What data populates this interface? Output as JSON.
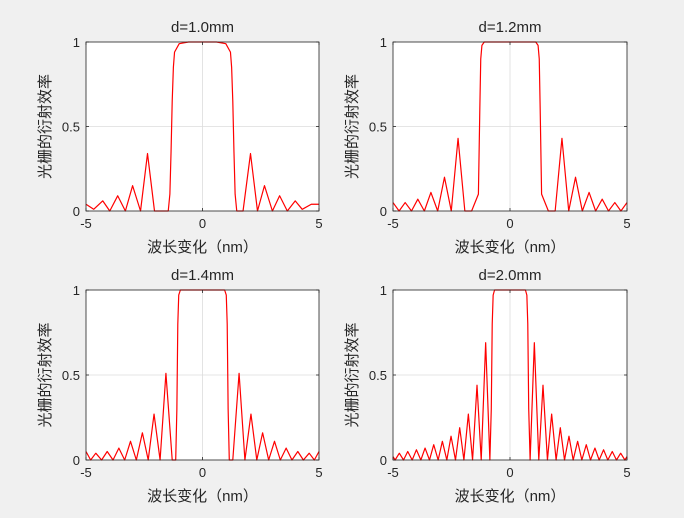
{
  "figure": {
    "background": "#f0f0f0",
    "axes_background": "#ffffff",
    "line_color": "#ff0000",
    "grid_color": "#dcdcdc",
    "axis_color": "#262626"
  },
  "chart_data": [
    {
      "type": "line",
      "title": "d=1.0mm",
      "xlabel": "波长变化（nm）",
      "ylabel": "光栅的衍射效率",
      "xlim": [
        -5,
        5
      ],
      "ylim": [
        0,
        1
      ],
      "xticks": [
        "-5",
        "0",
        "5"
      ],
      "yticks": [
        "0",
        "0.5",
        "1"
      ],
      "grid": true,
      "series": [
        {
          "color": "#ff0000",
          "x": [
            -5.0,
            -4.67,
            -4.28,
            -3.98,
            -3.64,
            -3.31,
            -3.0,
            -2.66,
            -2.36,
            -2.06,
            -1.74,
            -1.47,
            -1.4,
            -1.35,
            -1.3,
            -1.25,
            -1.2,
            -1.0,
            -0.6,
            0,
            0.6,
            1.0,
            1.2,
            1.25,
            1.3,
            1.35,
            1.4,
            1.47,
            1.74,
            2.06,
            2.36,
            2.66,
            3.0,
            3.31,
            3.64,
            3.98,
            4.28,
            4.67,
            5.0
          ],
          "y": [
            0.04,
            0.01,
            0.06,
            0.0,
            0.09,
            0.0,
            0.15,
            0.0,
            0.34,
            0.0,
            0.0,
            0.0,
            0.1,
            0.35,
            0.65,
            0.85,
            0.94,
            0.99,
            1.0,
            1.0,
            1.0,
            0.99,
            0.94,
            0.85,
            0.65,
            0.35,
            0.1,
            0.0,
            0.0,
            0.34,
            0.0,
            0.15,
            0.0,
            0.09,
            0.0,
            0.06,
            0.01,
            0.04,
            0.04
          ]
        }
      ]
    },
    {
      "type": "line",
      "title": "d=1.2mm",
      "xlabel": "波长变化（nm）",
      "ylabel": "光栅的衍射效率",
      "xlim": [
        -5,
        5
      ],
      "ylim": [
        0,
        1
      ],
      "xticks": [
        "-5",
        "0",
        "5"
      ],
      "yticks": [
        "0",
        "0.5",
        "1"
      ],
      "grid": true,
      "series": [
        {
          "color": "#ff0000",
          "x": [
            -5.0,
            -4.74,
            -4.48,
            -4.21,
            -3.94,
            -3.66,
            -3.38,
            -3.09,
            -2.8,
            -2.51,
            -2.22,
            -1.93,
            -1.64,
            -1.35,
            -1.29,
            -1.25,
            -1.2,
            -1.1,
            -0.8,
            0,
            0.8,
            1.1,
            1.2,
            1.25,
            1.29,
            1.35,
            1.64,
            1.93,
            2.22,
            2.51,
            2.8,
            3.09,
            3.38,
            3.66,
            3.94,
            4.21,
            4.48,
            4.74,
            5.0
          ],
          "y": [
            0.05,
            0.0,
            0.05,
            0.0,
            0.07,
            0.0,
            0.11,
            0.0,
            0.2,
            0.0,
            0.43,
            0.0,
            0.0,
            0.1,
            0.6,
            0.9,
            0.98,
            1.0,
            1.0,
            1.0,
            1.0,
            1.0,
            0.98,
            0.9,
            0.6,
            0.1,
            0.0,
            0.0,
            0.43,
            0.0,
            0.2,
            0.0,
            0.11,
            0.0,
            0.07,
            0.0,
            0.05,
            0.0,
            0.05
          ]
        }
      ]
    },
    {
      "type": "line",
      "title": "d=1.4mm",
      "xlabel": "波长变化（nm）",
      "ylabel": "光栅的衍射效率",
      "xlim": [
        -5,
        5
      ],
      "ylim": [
        0,
        1
      ],
      "xticks": [
        "-5",
        "0",
        "5"
      ],
      "yticks": [
        "0",
        "0.5",
        "1"
      ],
      "grid": true,
      "series": [
        {
          "color": "#ff0000",
          "x": [
            -5.0,
            -4.8,
            -4.58,
            -4.33,
            -4.09,
            -3.84,
            -3.59,
            -3.34,
            -3.09,
            -2.84,
            -2.58,
            -2.33,
            -2.08,
            -1.82,
            -1.57,
            -1.3,
            -1.15,
            -1.1,
            -1.06,
            -1.02,
            -0.95,
            -0.7,
            0,
            0.7,
            0.95,
            1.02,
            1.06,
            1.1,
            1.15,
            1.3,
            1.57,
            1.82,
            2.08,
            2.33,
            2.58,
            2.84,
            3.09,
            3.34,
            3.59,
            3.84,
            4.09,
            4.33,
            4.58,
            4.8,
            5.0
          ],
          "y": [
            0.05,
            0.0,
            0.04,
            0.0,
            0.05,
            0.0,
            0.07,
            0.0,
            0.11,
            0.0,
            0.16,
            0.0,
            0.27,
            0.0,
            0.51,
            0.0,
            0.0,
            0.3,
            0.8,
            0.97,
            1.0,
            1.0,
            1.0,
            1.0,
            1.0,
            0.97,
            0.8,
            0.3,
            0.0,
            0.0,
            0.51,
            0.0,
            0.27,
            0.0,
            0.16,
            0.0,
            0.11,
            0.0,
            0.07,
            0.0,
            0.05,
            0.0,
            0.04,
            0.0,
            0.05
          ]
        }
      ]
    },
    {
      "type": "line",
      "title": "d=2.0mm",
      "xlabel": "波长变化（nm）",
      "ylabel": "光栅的衍射效率",
      "xlim": [
        -5,
        5
      ],
      "ylim": [
        0,
        1
      ],
      "xticks": [
        "-5",
        "0",
        "5"
      ],
      "yticks": [
        "0",
        "0.5",
        "1"
      ],
      "grid": true,
      "series": [
        {
          "color": "#ff0000",
          "x": [
            -5.0,
            -4.91,
            -4.73,
            -4.55,
            -4.37,
            -4.18,
            -4.0,
            -3.81,
            -3.63,
            -3.44,
            -3.26,
            -3.07,
            -2.89,
            -2.7,
            -2.52,
            -2.33,
            -2.15,
            -1.97,
            -1.78,
            -1.6,
            -1.41,
            -1.23,
            -1.04,
            -0.86,
            -0.8,
            -0.76,
            -0.72,
            -0.66,
            0,
            0.66,
            0.72,
            0.76,
            0.8,
            0.86,
            1.04,
            1.23,
            1.41,
            1.6,
            1.78,
            1.97,
            2.15,
            2.33,
            2.52,
            2.7,
            2.89,
            3.07,
            3.26,
            3.44,
            3.63,
            3.81,
            4.0,
            4.18,
            4.37,
            4.55,
            4.73,
            4.91,
            5.0
          ],
          "y": [
            0.02,
            0.0,
            0.04,
            0.0,
            0.05,
            0.0,
            0.06,
            0.0,
            0.07,
            0.0,
            0.09,
            0.0,
            0.11,
            0.0,
            0.14,
            0.0,
            0.19,
            0.0,
            0.27,
            0.0,
            0.44,
            0.0,
            0.69,
            0.0,
            0.3,
            0.8,
            0.97,
            1.0,
            1.0,
            1.0,
            0.97,
            0.8,
            0.3,
            0.0,
            0.69,
            0.0,
            0.44,
            0.0,
            0.27,
            0.0,
            0.19,
            0.0,
            0.14,
            0.0,
            0.11,
            0.0,
            0.09,
            0.0,
            0.07,
            0.0,
            0.06,
            0.0,
            0.05,
            0.0,
            0.04,
            0.0,
            0.02
          ]
        }
      ]
    }
  ]
}
